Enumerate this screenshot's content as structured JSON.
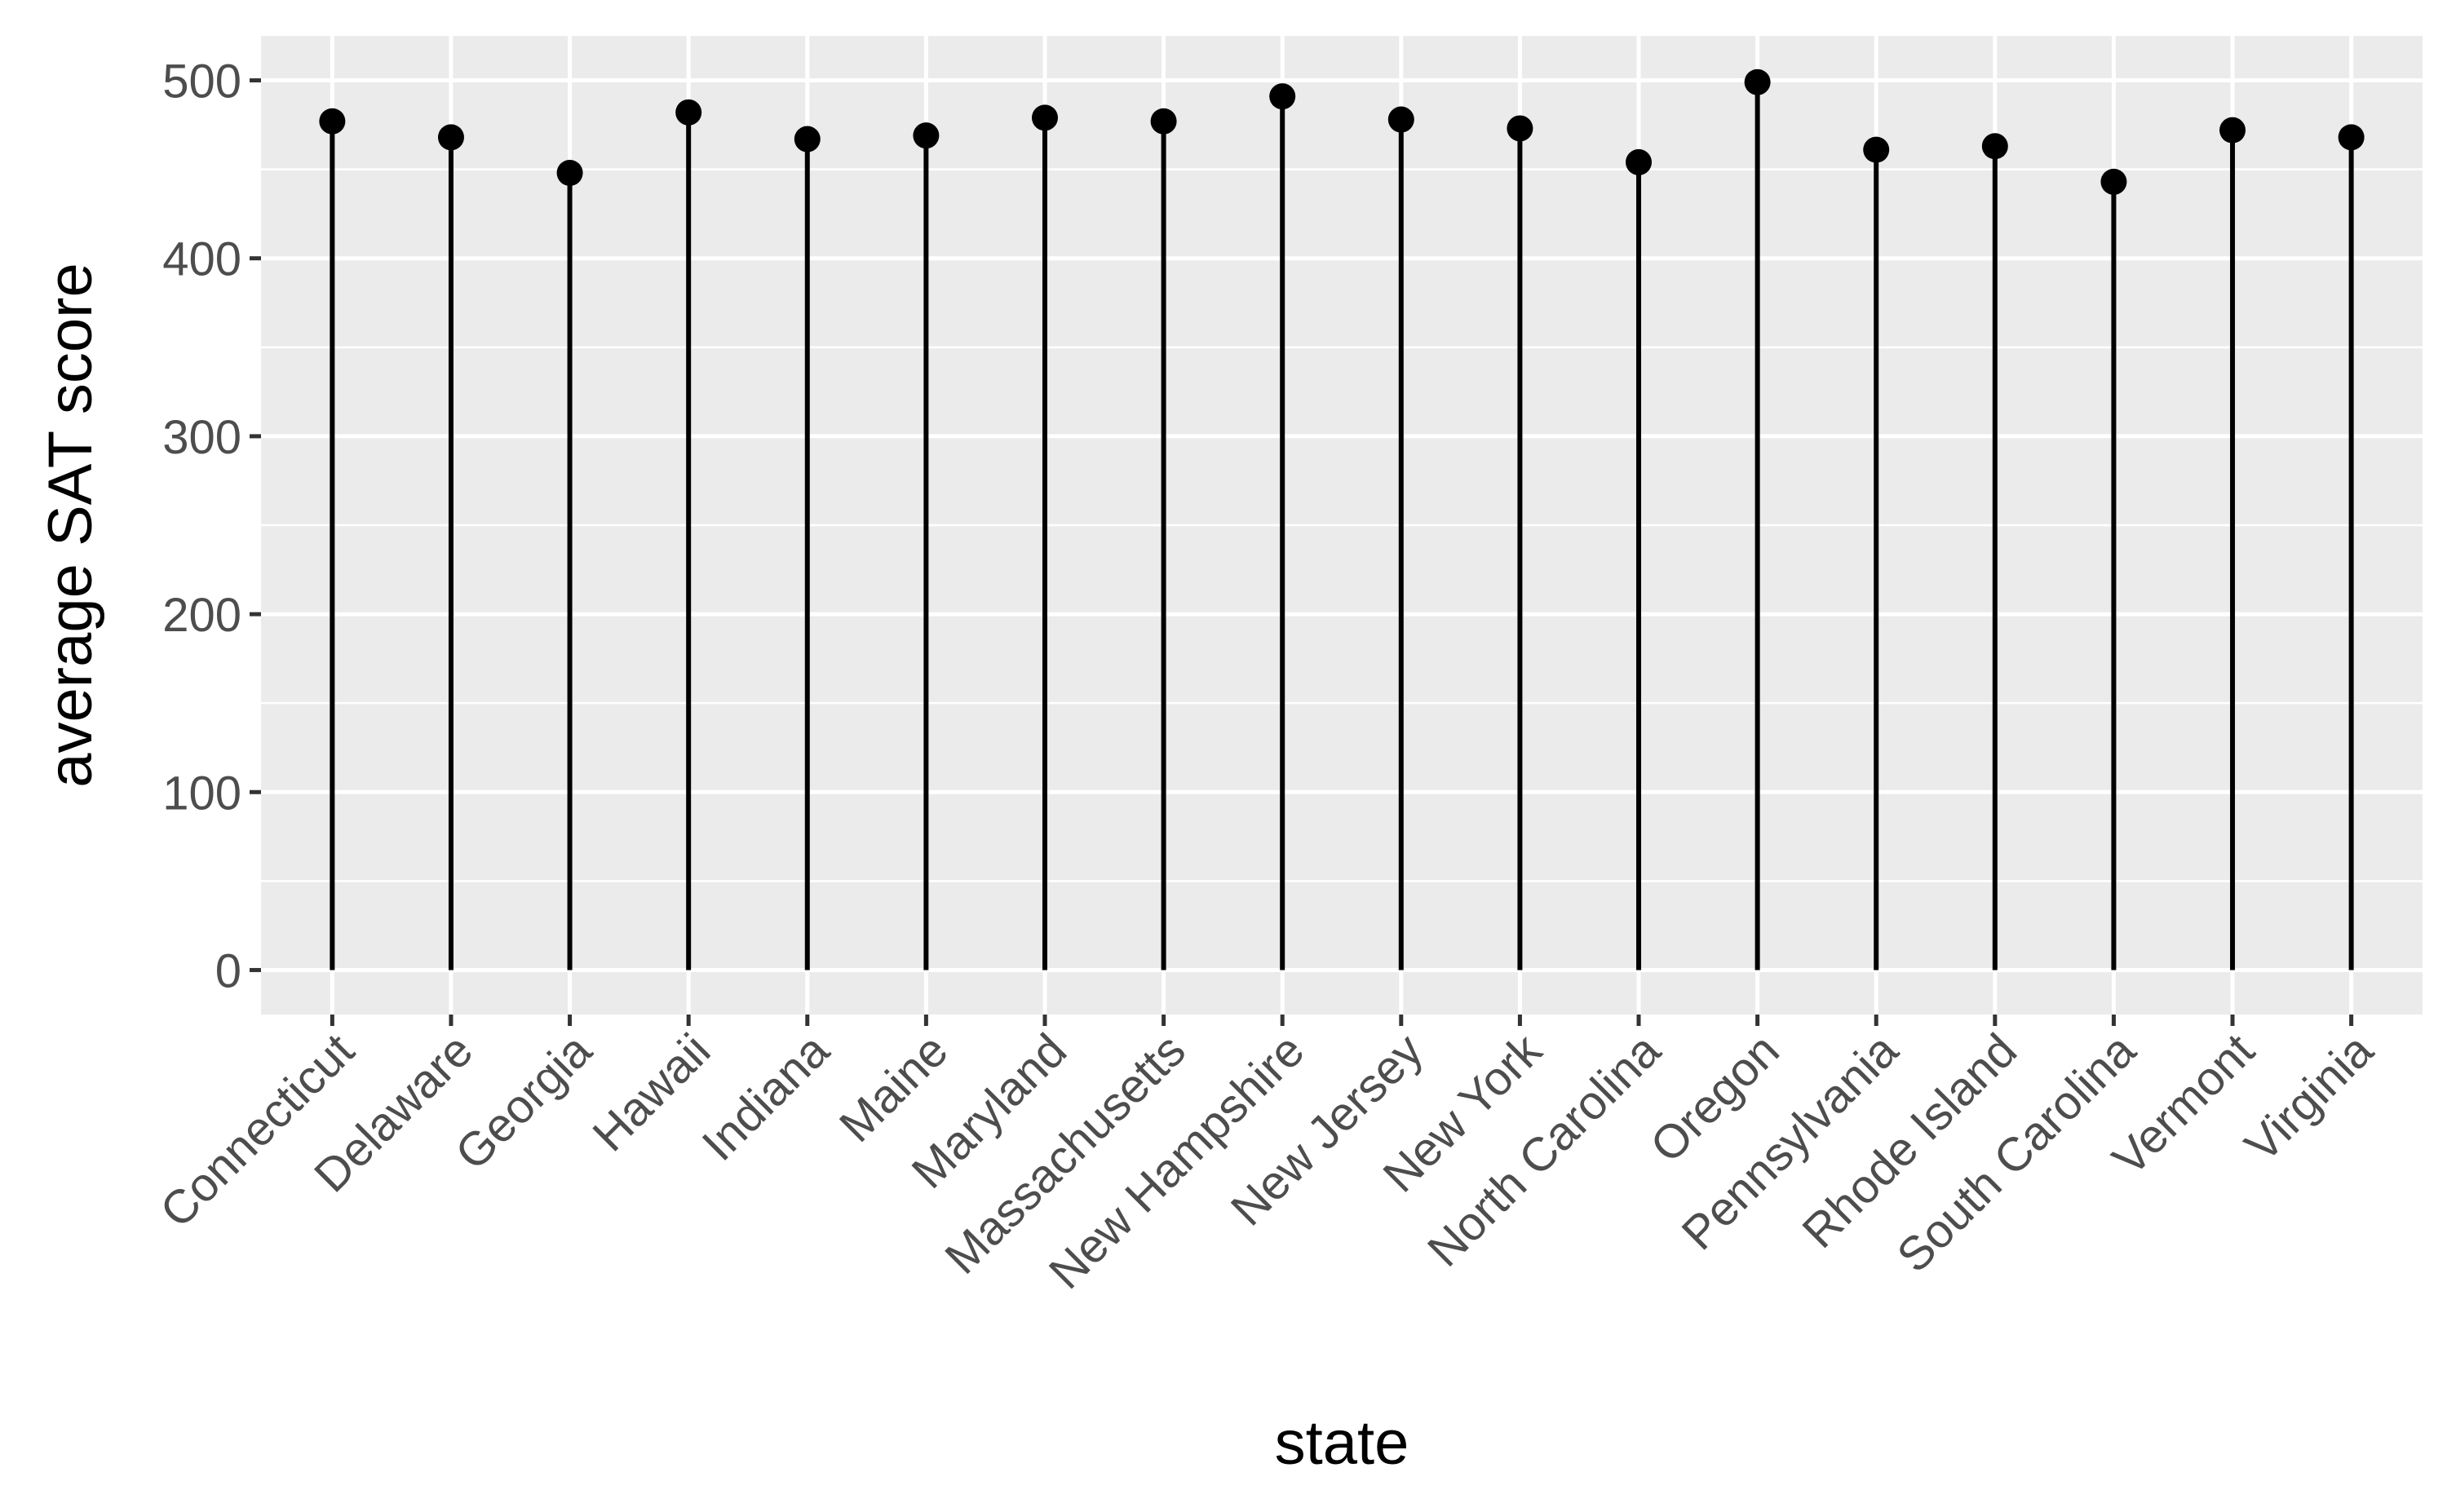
{
  "chart_data": {
    "type": "lollipop",
    "title": "",
    "xlabel": "state",
    "ylabel": "average SAT score",
    "ylim": [
      -25,
      525
    ],
    "yticks": [
      0,
      100,
      200,
      300,
      400,
      500
    ],
    "ytick_labels": [
      "0",
      "100",
      "200",
      "300",
      "400",
      "500"
    ],
    "grid": true,
    "categories": [
      "Connecticut",
      "Delaware",
      "Georgia",
      "Hawaii",
      "Indiana",
      "Maine",
      "Maryland",
      "Massachusetts",
      "New Hampshire",
      "New Jersey",
      "New York",
      "North Carolina",
      "Oregon",
      "Pennsylvania",
      "Rhode Island",
      "South Carolina",
      "Vermont",
      "Virginia"
    ],
    "values": [
      477,
      468,
      448,
      482,
      467,
      469,
      479,
      477,
      491,
      478,
      473,
      454,
      499,
      461,
      463,
      443,
      472,
      468
    ],
    "colors": {
      "panel": "#ebebeb",
      "grid": "#ffffff",
      "mark": "#000000",
      "tick": "#333333"
    }
  }
}
